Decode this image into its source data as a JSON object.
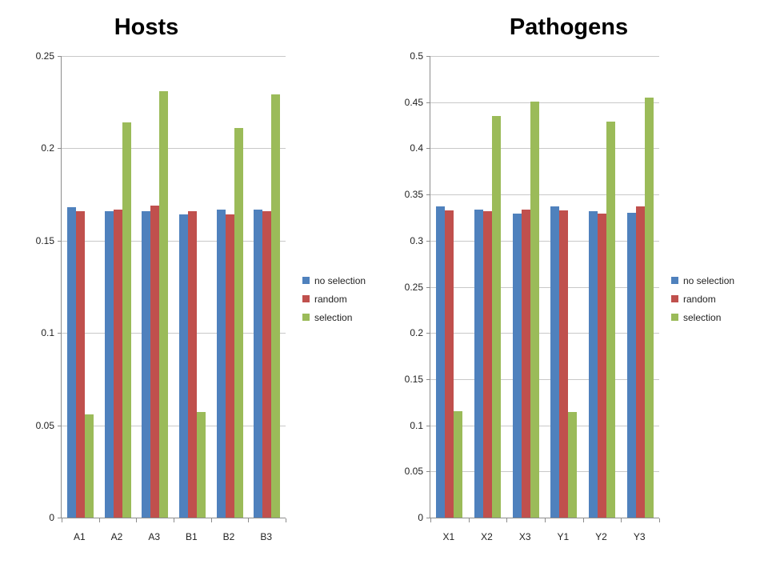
{
  "page": {
    "background": "#ffffff"
  },
  "chart_data": [
    {
      "type": "bar",
      "title": "Hosts",
      "categories": [
        "A1",
        "A2",
        "A3",
        "B1",
        "B2",
        "B3"
      ],
      "series": [
        {
          "name": "no selection",
          "color": "#4F81BD",
          "values": [
            0.168,
            0.166,
            0.166,
            0.164,
            0.167,
            0.167
          ]
        },
        {
          "name": "random",
          "color": "#C0504D",
          "values": [
            0.166,
            0.167,
            0.169,
            0.166,
            0.164,
            0.166
          ]
        },
        {
          "name": "selection",
          "color": "#9BBB59",
          "values": [
            0.056,
            0.214,
            0.231,
            0.057,
            0.211,
            0.229
          ]
        }
      ],
      "xlabel": "",
      "ylabel": "",
      "ylim": [
        0,
        0.25
      ],
      "ytick_step": 0.05,
      "yticks": [
        "0",
        "0.05",
        "0.1",
        "0.15",
        "0.2",
        "0.25"
      ],
      "grid": true,
      "legend_position": "right",
      "grid_color": "#c9c9c9",
      "axis_color": "#8c8c8c"
    },
    {
      "type": "bar",
      "title": "Pathogens",
      "categories": [
        "X1",
        "X2",
        "X3",
        "Y1",
        "Y2",
        "Y3"
      ],
      "series": [
        {
          "name": "no selection",
          "color": "#4F81BD",
          "values": [
            0.337,
            0.334,
            0.329,
            0.337,
            0.332,
            0.33
          ]
        },
        {
          "name": "random",
          "color": "#C0504D",
          "values": [
            0.333,
            0.332,
            0.334,
            0.333,
            0.329,
            0.337
          ]
        },
        {
          "name": "selection",
          "color": "#9BBB59",
          "values": [
            0.115,
            0.435,
            0.451,
            0.114,
            0.429,
            0.455
          ]
        }
      ],
      "xlabel": "",
      "ylabel": "",
      "ylim": [
        0,
        0.5
      ],
      "ytick_step": 0.05,
      "yticks": [
        "0",
        "0.05",
        "0.1",
        "0.15",
        "0.2",
        "0.25",
        "0.3",
        "0.35",
        "0.4",
        "0.45",
        "0.5"
      ],
      "grid": true,
      "legend_position": "right",
      "grid_color": "#c9c9c9",
      "axis_color": "#8c8c8c"
    }
  ]
}
